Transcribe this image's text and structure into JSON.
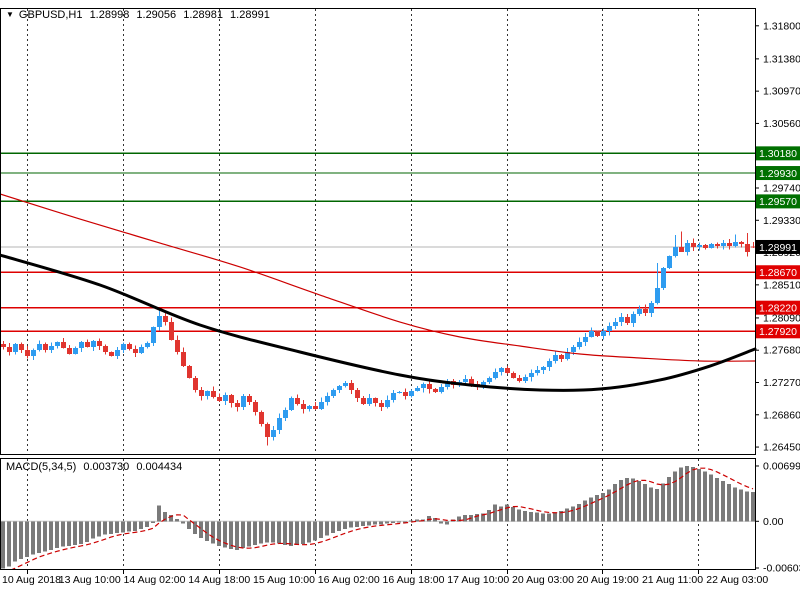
{
  "header": {
    "dropdown_icon": "▼",
    "symbol": "GBPUSD,H1",
    "open": "1.28998",
    "high": "1.29056",
    "low": "1.28981",
    "close": "1.28991"
  },
  "indicator": {
    "name": "MACD(5,34,5)",
    "main_value": "0.003730",
    "signal_value": "0.004434"
  },
  "colors": {
    "bull": "#2E9CF0",
    "bear": "#E0352F",
    "ma_slow_black": "#000000",
    "ma_fast_red": "#CC0000",
    "grid": "#333333",
    "resistance_line": "#006600",
    "resistance_badge": "#007000",
    "support_line": "#DE0000",
    "support_badge": "#E00000",
    "bid_line": "#B4B4B4",
    "bid_badge": "#000000",
    "badge_text": "#FFFFFF",
    "macd_bar": "#7A7A7A",
    "macd_signal": "#CC0000",
    "zero_line": "#C8C8C8",
    "axis_text": "#000000",
    "frame": "#000000"
  },
  "price_axis": {
    "ticks": [
      "1.31800",
      "1.31380",
      "1.30970",
      "1.30560",
      "1.30150",
      "1.29740",
      "1.29330",
      "1.28920",
      "1.28510",
      "1.28090",
      "1.27680",
      "1.27270",
      "1.26860",
      "1.26450"
    ]
  },
  "time_axis": {
    "labels": [
      "10 Aug 2018",
      "13 Aug 10:00",
      "14 Aug 02:00",
      "14 Aug 18:00",
      "15 Aug 10:00",
      "16 Aug 02:00",
      "16 Aug 18:00",
      "17 Aug 10:00",
      "20 Aug 03:00",
      "20 Aug 19:00",
      "21 Aug 11:00",
      "22 Aug 03:00"
    ]
  },
  "macd_axis": {
    "max_label": "0.006998",
    "zero_label": "0.00",
    "min_label": "-0.006032",
    "max": 0.006998,
    "min": -0.006032
  },
  "chart_data": {
    "type": "candlestick",
    "symbol": "GBPUSD",
    "timeframe": "H1",
    "levels": {
      "resistance": [
        1.3018,
        1.2993,
        1.2957
      ],
      "support": [
        1.2867,
        1.2822,
        1.2792
      ],
      "bid": 1.28991
    },
    "closes": [
      1.27721,
      1.27657,
      1.27759,
      1.27683,
      1.27607,
      1.27683,
      1.27759,
      1.27683,
      1.27733,
      1.27784,
      1.27708,
      1.27632,
      1.27708,
      1.27784,
      1.27721,
      1.27797,
      1.27733,
      1.27657,
      1.27607,
      1.27683,
      1.27759,
      1.27696,
      1.27645,
      1.27721,
      1.27772,
      1.27975,
      1.28114,
      1.28038,
      1.2781,
      1.27657,
      1.27479,
      1.27327,
      1.27175,
      1.27098,
      1.27162,
      1.27086,
      1.27035,
      1.27111,
      1.2701,
      1.26959,
      1.27098,
      1.27022,
      1.26895,
      1.26743,
      1.26578,
      1.26667,
      1.26819,
      1.26921,
      1.27073,
      1.26997,
      1.26933,
      1.26971,
      1.26933,
      1.27022,
      1.27098,
      1.27175,
      1.27225,
      1.27263,
      1.27175,
      1.27073,
      1.26997,
      1.27073,
      1.2701,
      1.26959,
      1.27048,
      1.27137,
      1.27149,
      1.27098,
      1.27162,
      1.272,
      1.27251,
      1.27187,
      1.27149,
      1.27213,
      1.27289,
      1.27238,
      1.27276,
      1.27314,
      1.27251,
      1.27213,
      1.27276,
      1.27327,
      1.27403,
      1.27454,
      1.2739,
      1.27327,
      1.27289,
      1.2734,
      1.2739,
      1.27429,
      1.27467,
      1.27543,
      1.27619,
      1.27568,
      1.27657,
      1.27721,
      1.27784,
      1.27848,
      1.27924,
      1.27861,
      1.27924,
      1.27987,
      1.28038,
      1.28102,
      1.28025,
      1.2814,
      1.28203,
      1.28152,
      1.2828,
      1.2847,
      1.28724,
      1.28876,
      1.28991,
      1.28927,
      1.29041,
      1.28991,
      1.29017,
      1.28978,
      1.29029,
      1.29004,
      1.29041,
      1.29004,
      1.29054,
      1.29029,
      1.28927,
      1.28991
    ],
    "wick_overrides": {
      "26": [
        1.28216,
        1.2793
      ],
      "44": [
        1.2676,
        1.2647
      ],
      "109": [
        1.2879,
        1.2826
      ],
      "112": [
        1.2914,
        1.2886
      ],
      "113": [
        1.2919,
        1.2893
      ],
      "122": [
        1.2915,
        1.28985
      ],
      "124": [
        1.29168,
        1.2887
      ]
    },
    "current_bar": {
      "open": 1.28998,
      "high": 1.29056,
      "low": 1.28981,
      "close": 1.28991
    },
    "ma_black_points": [
      [
        0,
        1.28889
      ],
      [
        100,
        1.28508
      ],
      [
        200,
        1.28
      ],
      [
        300,
        1.27657
      ],
      [
        400,
        1.27365
      ],
      [
        470,
        1.27238
      ],
      [
        540,
        1.27175
      ],
      [
        600,
        1.27187
      ],
      [
        660,
        1.27302
      ],
      [
        710,
        1.27479
      ],
      [
        755,
        1.27695
      ]
    ],
    "ma_red_points": [
      [
        0,
        1.29664
      ],
      [
        80,
        1.29346
      ],
      [
        160,
        1.29041
      ],
      [
        240,
        1.28737
      ],
      [
        320,
        1.28381
      ],
      [
        400,
        1.28038
      ],
      [
        460,
        1.27848
      ],
      [
        520,
        1.27733
      ],
      [
        580,
        1.27632
      ],
      [
        640,
        1.27581
      ],
      [
        700,
        1.27543
      ],
      [
        755,
        1.27543
      ]
    ],
    "macd_histogram": [
      -0.006,
      -0.0057,
      -0.0051,
      -0.0048,
      -0.0045,
      -0.0042,
      -0.004,
      -0.0038,
      -0.0036,
      -0.0034,
      -0.0032,
      -0.0031,
      -0.003,
      -0.0029,
      -0.0026,
      -0.0022,
      -0.0019,
      -0.0017,
      -0.0016,
      -0.0015,
      -0.0014,
      -0.0013,
      -0.0012,
      -0.001,
      -0.0007,
      -0.0002,
      0.002,
      0.0012,
      0.0008,
      0.0003,
      -0.0003,
      -0.001,
      -0.0016,
      -0.0021,
      -0.0025,
      -0.0028,
      -0.0031,
      -0.0033,
      -0.0035,
      -0.0036,
      -0.0034,
      -0.0032,
      -0.003,
      -0.0028,
      -0.0027,
      -0.0027,
      -0.0028,
      -0.003,
      -0.0031,
      -0.003,
      -0.0029,
      -0.0027,
      -0.0024,
      -0.0021,
      -0.0018,
      -0.0015,
      -0.0012,
      -0.001,
      -0.0008,
      -0.0007,
      -0.0006,
      -0.0005,
      -0.0004,
      -0.0004,
      -0.0003,
      -0.0002,
      -0.0001,
      0.0,
      0.0001,
      0.0002,
      0.0002,
      0.0007,
      0.0004,
      -0.0003,
      -0.0004,
      0.0002,
      0.0006,
      0.0008,
      0.0008,
      0.0009,
      0.001,
      0.0014,
      0.0021,
      0.0019,
      0.0021,
      0.0018,
      0.0015,
      0.0013,
      0.0012,
      0.0011,
      0.001,
      0.001,
      0.0011,
      0.0013,
      0.0016,
      0.0019,
      0.0022,
      0.0026,
      0.003,
      0.0033,
      0.0036,
      0.004,
      0.0047,
      0.0052,
      0.0055,
      0.0054,
      0.0051,
      0.0047,
      0.0043,
      0.0041,
      0.0048,
      0.0056,
      0.0063,
      0.0068,
      0.007,
      0.0069,
      0.0066,
      0.0063,
      0.0059,
      0.0055,
      0.0051,
      0.0047,
      0.0043,
      0.004,
      0.0038,
      0.00373
    ],
    "macd_pre": [
      -0.0068,
      -0.0066,
      -0.0063
    ]
  }
}
